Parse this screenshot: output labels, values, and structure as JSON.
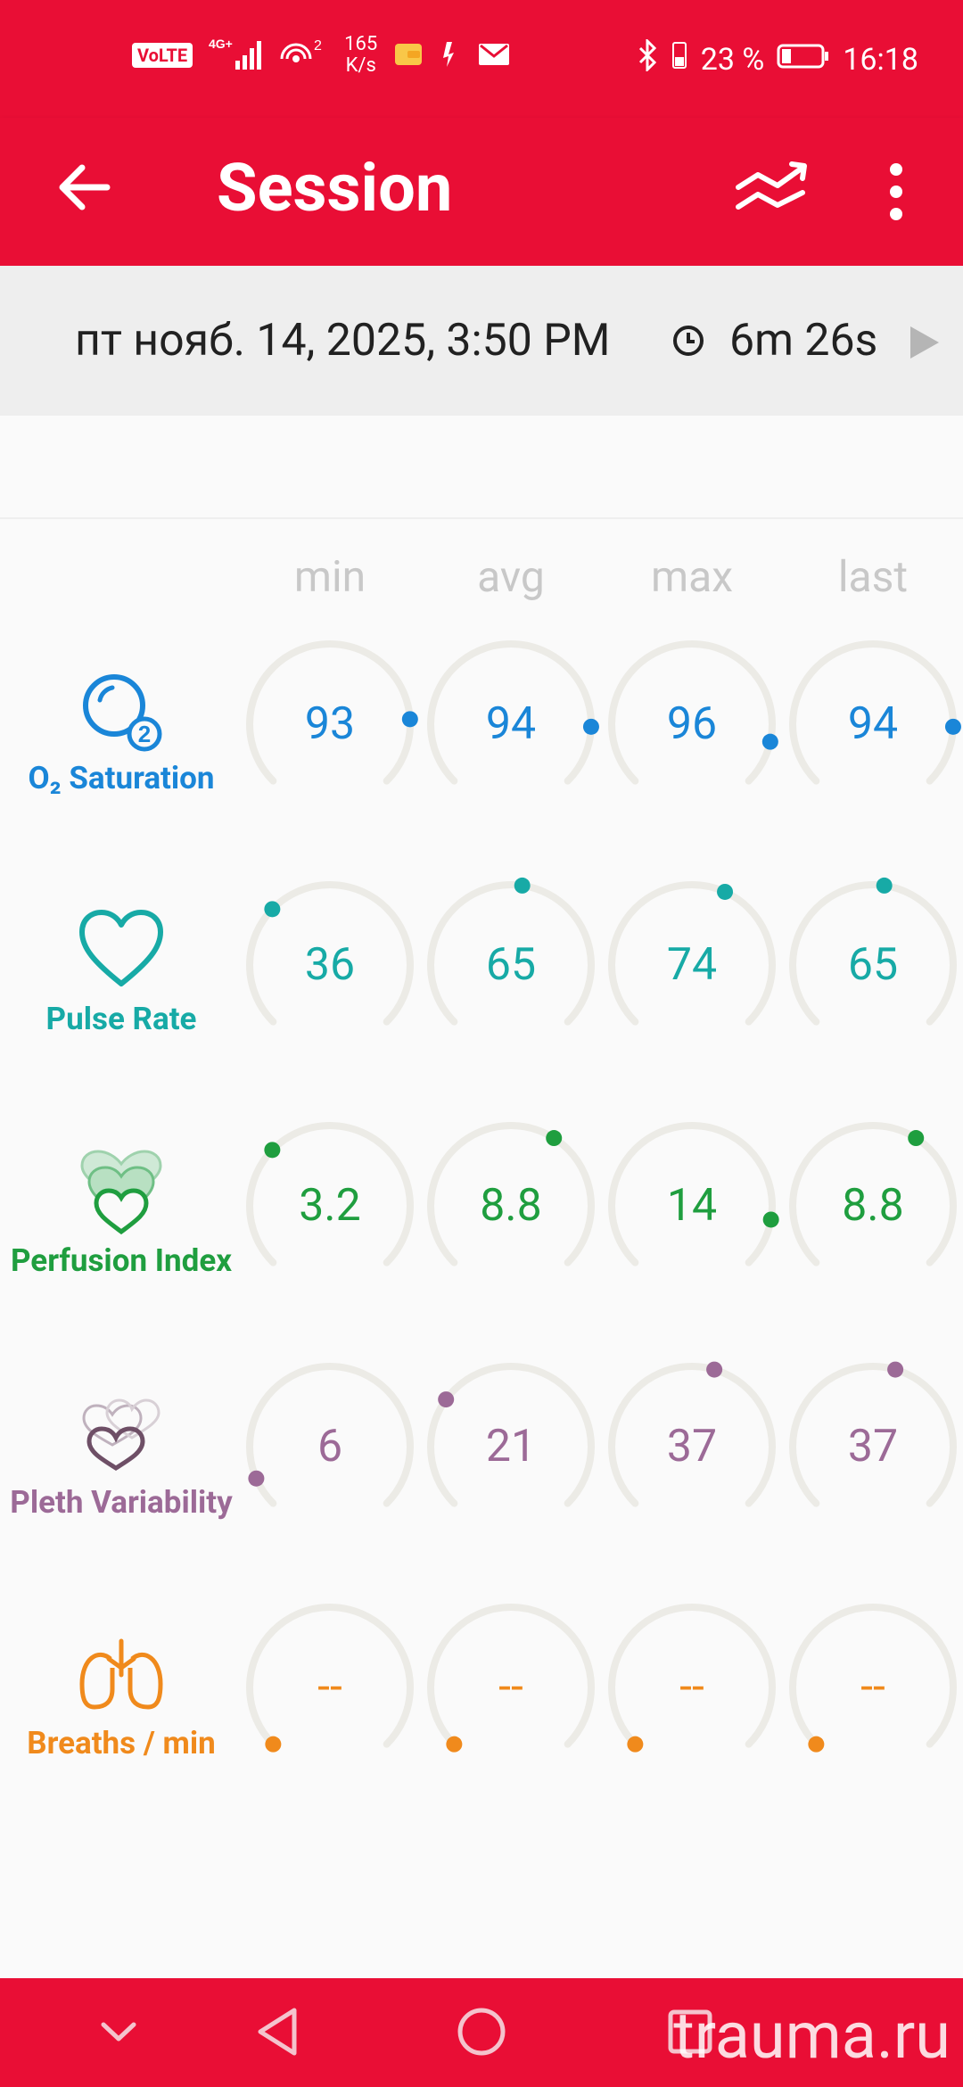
{
  "status_bar": {
    "volte": "VoLTE",
    "network": "4G+",
    "hotspot_count": "2",
    "speed_value": "165",
    "speed_unit": "K/s",
    "battery_percent": "23 %",
    "time": "16:18"
  },
  "app_bar": {
    "title": "Session",
    "back_icon": "arrow-back-icon",
    "trend_icon": "trend-icon",
    "more_icon": "more-vert-icon"
  },
  "session": {
    "date": "пт нояб. 14, 2025, 3:50 PM",
    "duration": "6m 26s"
  },
  "columns": [
    "min",
    "avg",
    "max",
    "last"
  ],
  "metrics": [
    {
      "label": "O₂ Saturation",
      "color": "#1a86d8",
      "icon": "o2-bubbles-icon",
      "values": [
        "93",
        "94",
        "96",
        "94"
      ],
      "fill": [
        0.82,
        0.84,
        0.88,
        0.84
      ]
    },
    {
      "label": "Pulse Rate",
      "color": "#17aaa6",
      "icon": "heart-outline-icon",
      "values": [
        "36",
        "65",
        "74",
        "65"
      ],
      "fill": [
        0.33,
        0.53,
        0.59,
        0.53
      ]
    },
    {
      "label": "Perfusion Index",
      "color": "#1f9e3f",
      "icon": "stacked-hearts-icon",
      "values": [
        "3.2",
        "8.8",
        "14",
        "8.8"
      ],
      "fill": [
        0.33,
        0.62,
        0.87,
        0.62
      ]
    },
    {
      "label": "Pleth Variability",
      "color": "#9c6a97",
      "icon": "pleth-hearts-icon",
      "values": [
        "6",
        "21",
        "37",
        "37"
      ],
      "fill": [
        0.08,
        0.3,
        0.56,
        0.56
      ]
    },
    {
      "label": "Breaths / min",
      "color": "#f08a1c",
      "icon": "lungs-icon",
      "values": [
        "--",
        "--",
        "--",
        "--"
      ],
      "fill": [
        0,
        0,
        0,
        0
      ]
    }
  ],
  "nav": {
    "icons": [
      "chevron-down-icon",
      "back-triangle-icon",
      "home-circle-icon",
      "recents-square-icon"
    ]
  },
  "watermark": "trauma.ru"
}
